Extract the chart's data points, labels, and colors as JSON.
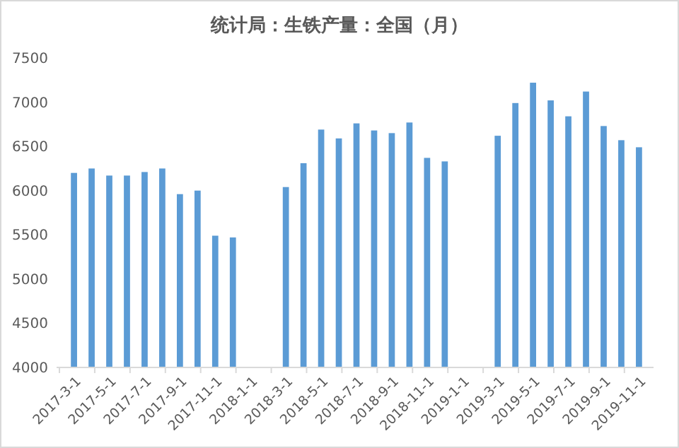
{
  "chart_data": {
    "type": "bar",
    "title": "统计局：生铁产量：全国（月）",
    "categories": [
      "2017-3-1",
      null,
      "2017-5-1",
      null,
      "2017-7-1",
      null,
      "2017-9-1",
      null,
      "2017-11-1",
      null,
      "2018-1-1",
      null,
      "2018-3-1",
      null,
      "2018-5-1",
      null,
      "2018-7-1",
      null,
      "2018-9-1",
      null,
      "2018-11-1",
      null,
      "2019-1-1",
      null,
      "2019-3-1",
      null,
      "2019-5-1",
      null,
      "2019-7-1",
      null,
      "2019-9-1",
      null,
      "2019-11-1"
    ],
    "values": [
      6200,
      6250,
      6170,
      6170,
      6210,
      6250,
      5960,
      6000,
      5490,
      5470,
      null,
      null,
      6040,
      6310,
      6690,
      6590,
      6760,
      6680,
      6650,
      6770,
      6370,
      6330,
      null,
      null,
      6620,
      6990,
      7220,
      7020,
      6840,
      7120,
      6730,
      6570,
      6490
    ],
    "color": "#5b9bd5",
    "ylim": [
      4000,
      7500
    ],
    "yticks": [
      4000,
      4500,
      5000,
      5500,
      6000,
      6500,
      7000,
      7500
    ],
    "grid": false
  }
}
